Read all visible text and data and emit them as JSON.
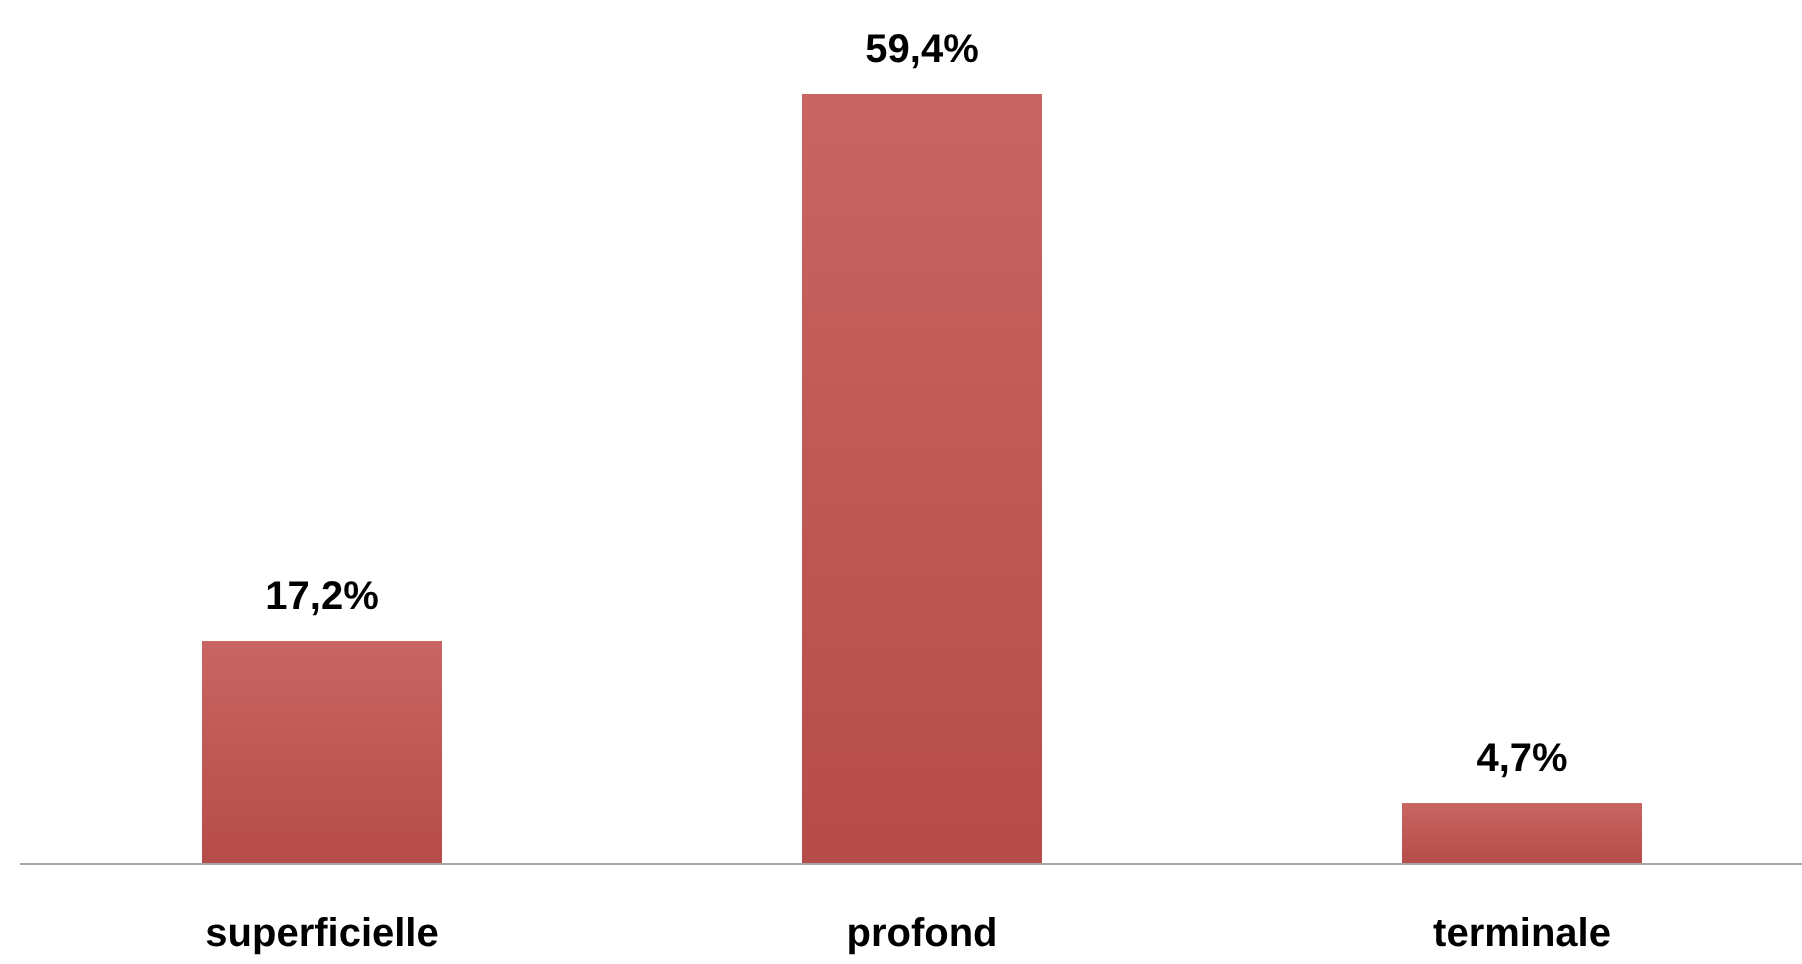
{
  "chart_data": {
    "type": "bar",
    "categories": [
      "superficielle",
      "profond",
      "terminale"
    ],
    "values": [
      17.2,
      59.4,
      4.7
    ],
    "color": "#c0504d",
    "value_labels": [
      "17,2%",
      "59,4%",
      "4,7%"
    ]
  }
}
